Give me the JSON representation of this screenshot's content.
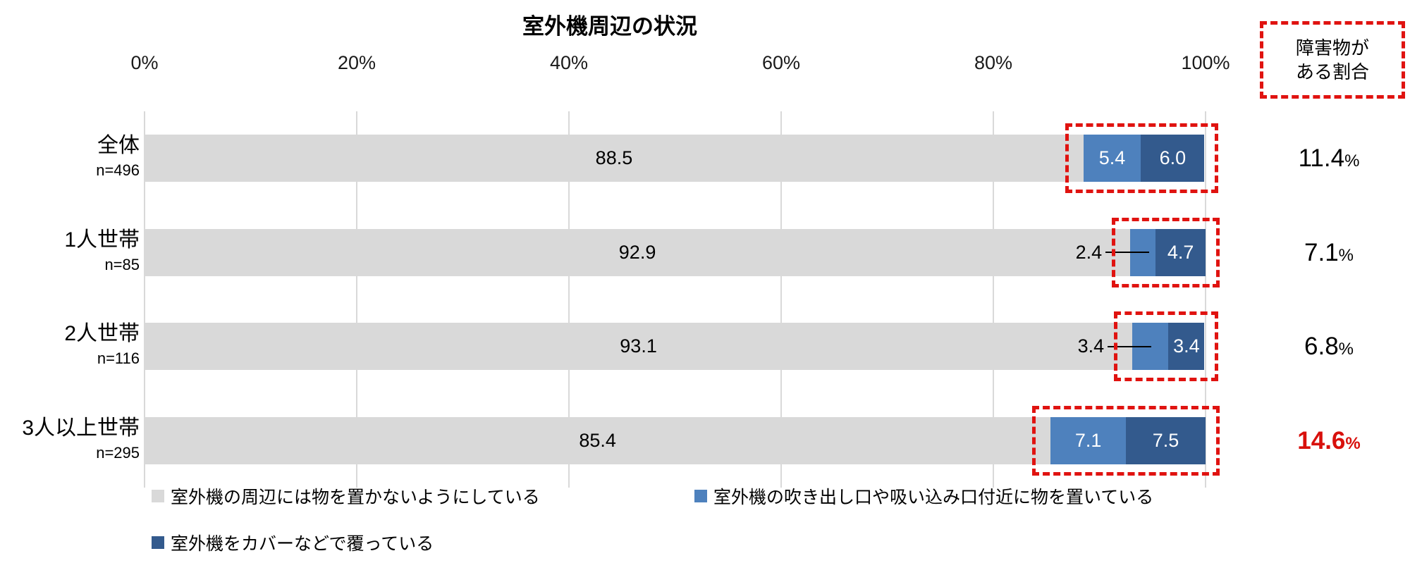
{
  "title": "室外機周辺の状況",
  "side_header": {
    "lines": [
      "障害物が",
      "ある割合"
    ]
  },
  "colors": {
    "segment_gray": "#d9d9d9",
    "segment_blue": "#4e81bd",
    "segment_dark_blue": "#335a8d",
    "highlight_red": "#e01310",
    "rate_red": "#d8100c",
    "gridline": "#d9d9d9",
    "text": "#000000"
  },
  "chart_data": {
    "type": "bar",
    "orientation": "horizontal",
    "stacked": true,
    "title": "室外機周辺の状況",
    "x_axis": {
      "ticks": [
        "0%",
        "20%",
        "40%",
        "60%",
        "80%",
        "100%"
      ],
      "min": 0,
      "max": 100,
      "position": "top",
      "grid": true
    },
    "categories": [
      "全体",
      "1人世帯",
      "2人世帯",
      "3人以上世帯"
    ],
    "sample_sizes": [
      "n=496",
      "n=85",
      "n=116",
      "n=295"
    ],
    "series": [
      {
        "name": "室外機の周辺には物を置かないようにしている",
        "color_key": "segment_gray",
        "values": [
          88.5,
          92.9,
          93.1,
          85.4
        ]
      },
      {
        "name": "室外機の吹き出し口や吸い込み口付近に物を置いている",
        "color_key": "segment_blue",
        "values": [
          5.4,
          2.4,
          3.4,
          7.1
        ]
      },
      {
        "name": "室外機をカバーなどで覆っている",
        "color_key": "segment_dark_blue",
        "values": [
          6.0,
          4.7,
          3.4,
          7.5
        ]
      }
    ],
    "obstacle_rates": {
      "values": [
        11.4,
        7.1,
        6.8,
        14.6
      ],
      "highlight_index": 3
    },
    "layout_hints": {
      "middle_label_outside": [
        false,
        true,
        true,
        false
      ],
      "legend_position": "bottom",
      "highlight_boxes": "around blue segments of every bar and around side header"
    }
  }
}
